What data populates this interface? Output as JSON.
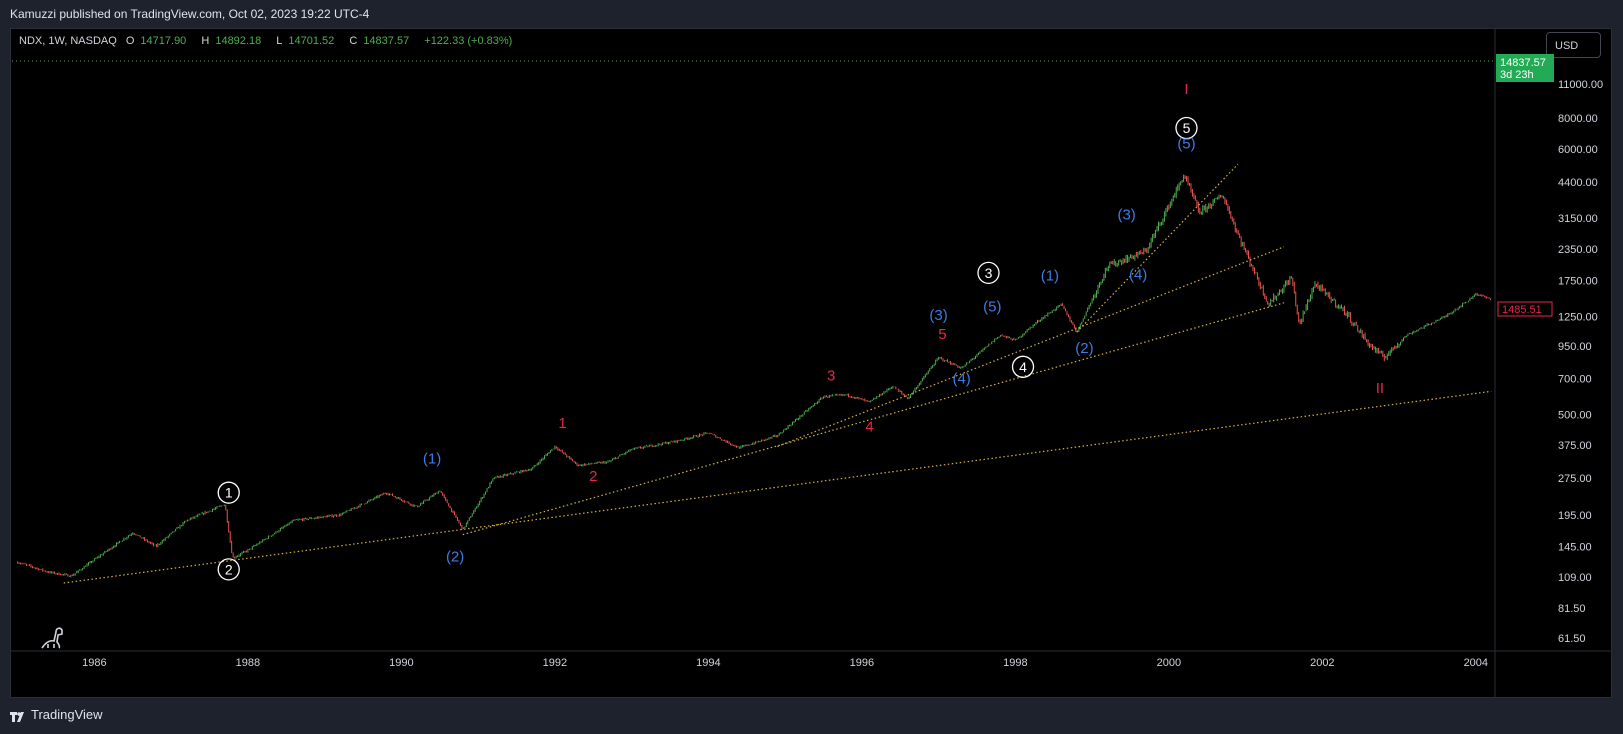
{
  "header": {
    "publish_text": "Kamuzzi published on TradingView.com, Oct 02, 2023 19:22 UTC-4"
  },
  "legend": {
    "symbol": "NDX, 1W, NASDAQ",
    "open_label": "O",
    "open": "14717.90",
    "high_label": "H",
    "high": "14892.18",
    "low_label": "L",
    "low": "14701.52",
    "close_label": "C",
    "close": "14837.57",
    "change": "+122.33 (+0.83%)"
  },
  "currency_button": "USD",
  "price_badge": {
    "price": "14837.57",
    "countdown": "3d 23h"
  },
  "cursor_price": "1485.51",
  "footer": {
    "brand": "TradingView"
  },
  "colors": {
    "background": "#000000",
    "up_candle": "#4caf50",
    "down_candle": "#ef5350",
    "trendline": "#d4b23e",
    "label_white": "#ffffff",
    "label_blue": "#3d7be6",
    "label_red": "#e8264c"
  },
  "chart_data": {
    "type": "candlestick",
    "symbol": "NDX",
    "interval": "1W",
    "y_scale": "log",
    "x_ticks": [
      "1986",
      "1988",
      "1990",
      "1992",
      "1994",
      "1996",
      "1998",
      "2000",
      "2002",
      "2004"
    ],
    "y_ticks": [
      "11000.00",
      "8000.00",
      "6000.00",
      "4400.00",
      "3150.00",
      "2350.00",
      "1750.00",
      "1250.00",
      "950.00",
      "700.00",
      "500.00",
      "375.00",
      "275.00",
      "195.00",
      "145.00",
      "109.00",
      "81.50",
      "61.50"
    ],
    "price_path": [
      [
        1985.0,
        125
      ],
      [
        1985.4,
        114
      ],
      [
        1985.7,
        110
      ],
      [
        1986.1,
        135
      ],
      [
        1986.5,
        165
      ],
      [
        1986.8,
        145
      ],
      [
        1987.2,
        185
      ],
      [
        1987.7,
        215
      ],
      [
        1987.8,
        130
      ],
      [
        1988.0,
        140
      ],
      [
        1988.6,
        185
      ],
      [
        1989.2,
        195
      ],
      [
        1989.8,
        240
      ],
      [
        1990.2,
        210
      ],
      [
        1990.5,
        245
      ],
      [
        1990.8,
        170
      ],
      [
        1991.2,
        275
      ],
      [
        1991.7,
        300
      ],
      [
        1992.0,
        370
      ],
      [
        1992.3,
        310
      ],
      [
        1992.7,
        320
      ],
      [
        1993.0,
        360
      ],
      [
        1993.6,
        390
      ],
      [
        1994.0,
        420
      ],
      [
        1994.4,
        365
      ],
      [
        1994.9,
        410
      ],
      [
        1995.5,
        590
      ],
      [
        1995.8,
        600
      ],
      [
        1996.1,
        560
      ],
      [
        1996.4,
        650
      ],
      [
        1996.6,
        580
      ],
      [
        1997.0,
        850
      ],
      [
        1997.3,
        770
      ],
      [
        1997.8,
        1050
      ],
      [
        1998.0,
        1000
      ],
      [
        1998.3,
        1200
      ],
      [
        1998.6,
        1400
      ],
      [
        1998.8,
        1080
      ],
      [
        1999.2,
        2000
      ],
      [
        1999.7,
        2300
      ],
      [
        2000.2,
        4700
      ],
      [
        2000.4,
        3300
      ],
      [
        2000.7,
        3900
      ],
      [
        2000.9,
        2700
      ],
      [
        2001.3,
        1400
      ],
      [
        2001.6,
        1800
      ],
      [
        2001.7,
        1150
      ],
      [
        2001.9,
        1700
      ],
      [
        2002.3,
        1300
      ],
      [
        2002.6,
        970
      ],
      [
        2002.8,
        850
      ],
      [
        2003.1,
        1050
      ],
      [
        2003.6,
        1250
      ],
      [
        2003.9,
        1450
      ],
      [
        2004.0,
        1550
      ],
      [
        2004.2,
        1460
      ]
    ],
    "trendlines": [
      {
        "from": [
          1985.6,
          103
        ],
        "to": [
          2004.2,
          620
        ]
      },
      {
        "from": [
          1990.8,
          162
        ],
        "to": [
          2001.5,
          1420
        ]
      },
      {
        "from": [
          1994.9,
          370
        ],
        "to": [
          2001.5,
          2400
        ]
      },
      {
        "from": [
          1998.8,
          1080
        ],
        "to": [
          2000.9,
          5200
        ]
      }
    ],
    "wave_labels": [
      {
        "text": "1",
        "style": "circle",
        "color": "white",
        "x": 1987.75,
        "y": 240
      },
      {
        "text": "2",
        "style": "circle",
        "color": "white",
        "x": 1987.75,
        "y": 117
      },
      {
        "text": "3",
        "style": "circle",
        "color": "white",
        "x": 1997.65,
        "y": 1880
      },
      {
        "text": "4",
        "style": "circle",
        "color": "white",
        "x": 1998.1,
        "y": 780
      },
      {
        "text": "5",
        "style": "circle",
        "color": "white",
        "x": 2000.23,
        "y": 7300
      },
      {
        "text": "(1)",
        "style": "paren",
        "color": "blue",
        "x": 1990.4,
        "y": 330
      },
      {
        "text": "(2)",
        "style": "paren",
        "color": "blue",
        "x": 1990.7,
        "y": 132
      },
      {
        "text": "(3)",
        "style": "paren",
        "color": "blue",
        "x": 1997.0,
        "y": 1270
      },
      {
        "text": "(4)",
        "style": "paren",
        "color": "blue",
        "x": 1997.3,
        "y": 700
      },
      {
        "text": "(5)",
        "style": "paren",
        "color": "blue",
        "x": 1997.7,
        "y": 1370
      },
      {
        "text": "(1)",
        "style": "paren",
        "color": "blue",
        "x": 1998.45,
        "y": 1830
      },
      {
        "text": "(2)",
        "style": "paren",
        "color": "blue",
        "x": 1998.9,
        "y": 930
      },
      {
        "text": "(3)",
        "style": "paren",
        "color": "blue",
        "x": 1999.45,
        "y": 3250
      },
      {
        "text": "(4)",
        "style": "paren",
        "color": "blue",
        "x": 1999.6,
        "y": 1850
      },
      {
        "text": "(5)",
        "style": "paren",
        "color": "blue",
        "x": 2000.23,
        "y": 6300
      },
      {
        "text": "1",
        "style": "plain",
        "color": "red",
        "x": 1992.1,
        "y": 460
      },
      {
        "text": "2",
        "style": "plain",
        "color": "red",
        "x": 1992.5,
        "y": 280
      },
      {
        "text": "3",
        "style": "plain",
        "color": "red",
        "x": 1995.6,
        "y": 720
      },
      {
        "text": "4",
        "style": "plain",
        "color": "red",
        "x": 1996.1,
        "y": 445
      },
      {
        "text": "5",
        "style": "plain",
        "color": "red",
        "x": 1997.05,
        "y": 1060
      },
      {
        "text": "I",
        "style": "plain",
        "color": "red",
        "x": 2000.23,
        "y": 10500
      },
      {
        "text": "II",
        "style": "plain",
        "color": "red",
        "x": 2002.75,
        "y": 640
      }
    ]
  }
}
